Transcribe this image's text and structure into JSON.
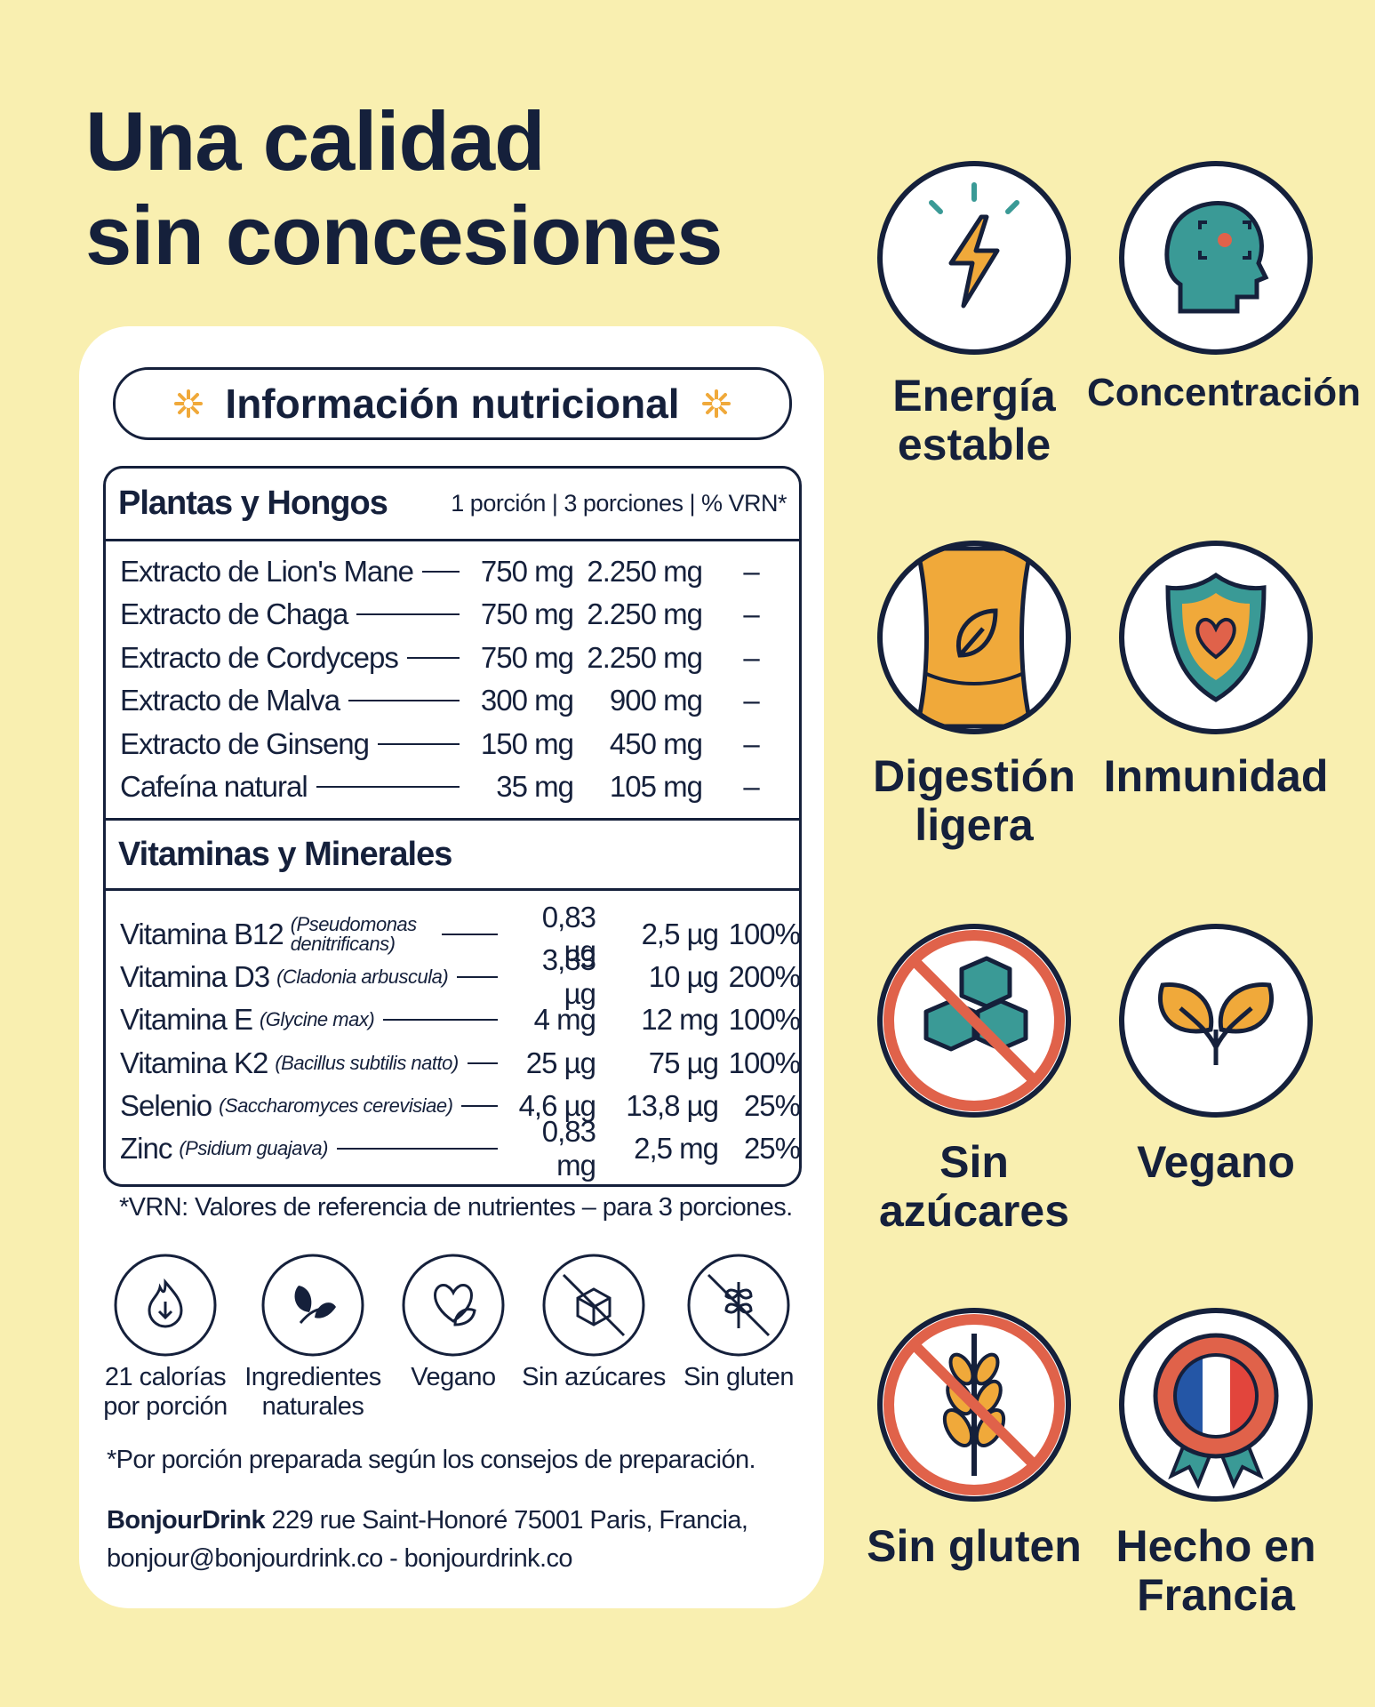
{
  "title": {
    "line1": "Una calidad",
    "line2": "sin concesiones"
  },
  "panel": {
    "header": "Información nutricional",
    "plants": {
      "title": "Plantas y Hongos",
      "columns": "1 porción | 3 porciones | % VRN*",
      "rows": [
        [
          "Extracto de Lion's Mane",
          "750 mg",
          "2.250 mg",
          "–"
        ],
        [
          "Extracto de Chaga",
          "750 mg",
          "2.250 mg",
          "–"
        ],
        [
          "Extracto de Cordyceps",
          "750 mg",
          "2.250 mg",
          "–"
        ],
        [
          "Extracto de Malva",
          "300 mg",
          "900 mg",
          "–"
        ],
        [
          "Extracto de Ginseng",
          "150 mg",
          "450 mg",
          "–"
        ],
        [
          "Cafeína natural",
          "35 mg",
          "105 mg",
          "–"
        ]
      ]
    },
    "vitamins": {
      "title": "Vitaminas y Minerales",
      "rows": [
        [
          "Vitamina B12",
          "(Pseudomonas denitrificans)",
          "0,83 µg",
          "2,5 µg",
          "100%"
        ],
        [
          "Vitamina D3",
          "(Cladonia arbuscula)",
          "3,33 µg",
          "10 µg",
          "200%"
        ],
        [
          "Vitamina E",
          "(Glycine max)",
          "4 mg",
          "12 mg",
          "100%"
        ],
        [
          "Vitamina K2",
          "(Bacillus subtilis natto)",
          "25 µg",
          "75 µg",
          "100%"
        ],
        [
          "Selenio",
          "(Saccharomyces cerevisiae)",
          "4,6 µg",
          "13,8 µg",
          "25%"
        ],
        [
          "Zinc",
          "(Psidium guajava)",
          "0,83 mg",
          "2,5 mg",
          "25%"
        ]
      ]
    },
    "vrn_note": "*VRN: Valores de referencia de nutrientes – para 3 porciones.",
    "badges": [
      "21 calorías por porción",
      "Ingredientes naturales",
      "Vegano",
      "Sin azúcares",
      "Sin gluten"
    ],
    "portion_note": "*Por porción preparada según los consejos de preparación.",
    "address": {
      "brand": "BonjourDrink",
      "line1": "229 rue Saint-Honoré 75001 Paris, Francia,",
      "line2": "bonjour@bonjourdrink.co - bonjourdrink.co"
    }
  },
  "benefits": [
    "Energía estable",
    "Concentración",
    "Digestión ligera",
    "Inmunidad",
    "Sin azúcares",
    "Vegano",
    "Sin gluten",
    "Hecho en Francia"
  ]
}
